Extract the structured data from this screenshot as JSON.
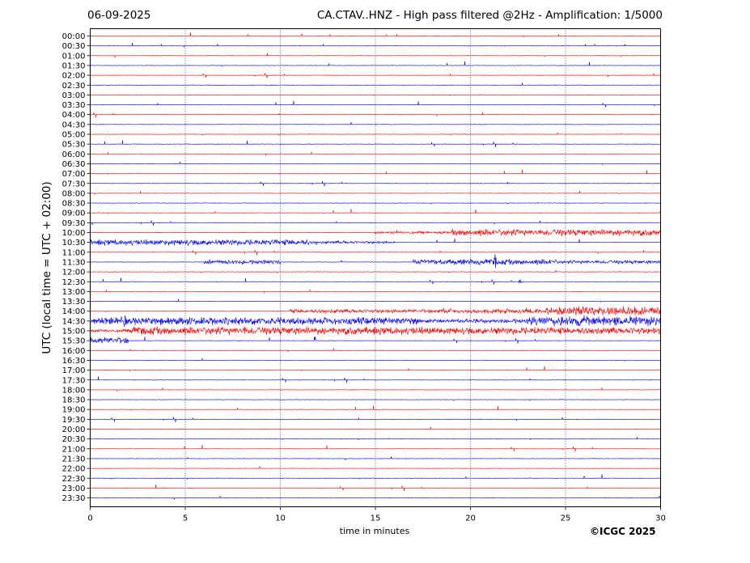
{
  "header": {
    "date": "06-09-2025",
    "title": "CA.CTAV..HNZ - High pass filtered @2Hz - Amplification: 1/5000"
  },
  "footer": {
    "copyright": "©ICGC 2025"
  },
  "colors": {
    "trace_a": "#ff0000",
    "trace_b": "#0000ff",
    "grid": "#000080"
  },
  "chart_data": {
    "type": "line",
    "xlabel": "time in minutes",
    "ylabel": "UTC (local time = UTC + 02:00)",
    "xlim": [
      0,
      30
    ],
    "xticks": [
      0,
      5,
      10,
      15,
      20,
      25,
      30
    ],
    "grid": "vertical dotted lines at x = 5, 10, 15, 20, 25",
    "rows": [
      "00:00",
      "00:30",
      "01:00",
      "01:30",
      "02:00",
      "02:30",
      "03:00",
      "03:30",
      "04:00",
      "04:30",
      "05:00",
      "05:30",
      "06:00",
      "06:30",
      "07:00",
      "07:30",
      "08:00",
      "08:30",
      "09:00",
      "09:30",
      "10:00",
      "10:30",
      "11:00",
      "11:30",
      "12:00",
      "12:30",
      "13:00",
      "13:30",
      "14:00",
      "14:30",
      "15:00",
      "15:30",
      "16:00",
      "16:30",
      "17:00",
      "17:30",
      "18:00",
      "18:30",
      "19:00",
      "19:30",
      "20:00",
      "20:30",
      "21:00",
      "21:30",
      "22:00",
      "22:30",
      "23:00",
      "23:30"
    ],
    "row_colors": "alternating red (even rows) / blue (odd rows)",
    "activity": [
      {
        "row": "10:00",
        "segments": [
          [
            14.9,
            19,
            0.3
          ],
          [
            19,
            30,
            0.85
          ]
        ]
      },
      {
        "row": "10:30",
        "segments": [
          [
            0,
            11.5,
            0.75
          ],
          [
            11.5,
            16,
            0.35
          ]
        ]
      },
      {
        "row": "11:30",
        "segments": [
          [
            6,
            10,
            0.55
          ],
          [
            17,
            24.5,
            0.7
          ],
          [
            24.5,
            30,
            0.45
          ]
        ]
      },
      {
        "row": "14:00",
        "segments": [
          [
            10.5,
            20,
            0.5
          ],
          [
            20,
            24,
            0.6
          ],
          [
            24,
            30,
            1.2
          ]
        ]
      },
      {
        "row": "14:30",
        "segments": [
          [
            0,
            9,
            1.0
          ],
          [
            9,
            17.5,
            0.9
          ],
          [
            17.5,
            23,
            0.55
          ],
          [
            23,
            30,
            1.3
          ]
        ]
      },
      {
        "row": "15:00",
        "segments": [
          [
            0,
            2,
            0.4
          ],
          [
            2,
            18,
            1.0
          ],
          [
            18,
            30,
            0.9
          ]
        ]
      },
      {
        "row": "15:30",
        "segments": [
          [
            0,
            2,
            0.9
          ]
        ]
      }
    ],
    "spikes": [
      {
        "row": "14:30",
        "x": 1.8,
        "amp": 2.6
      },
      {
        "row": "15:00",
        "x": 8.1,
        "amp": 1.8
      },
      {
        "row": "15:30",
        "x": 11.8,
        "amp": 1.8
      },
      {
        "row": "11:30",
        "x": 21.3,
        "amp": 2.7
      },
      {
        "row": "12:30",
        "x": 22.6,
        "amp": 0.9
      },
      {
        "row": "15:00",
        "x": 23.4,
        "amp": 1.7
      },
      {
        "row": "14:00",
        "x": 25.7,
        "amp": 1.4
      }
    ]
  }
}
